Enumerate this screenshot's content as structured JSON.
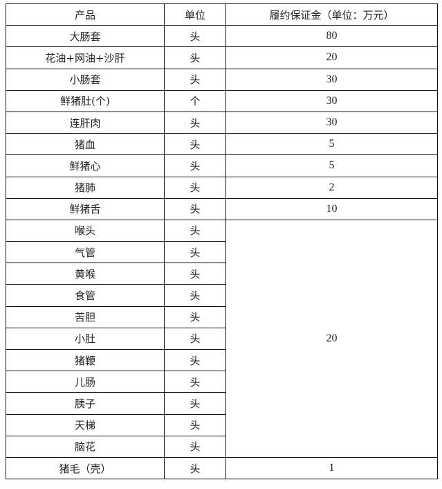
{
  "table": {
    "headers": [
      "产品",
      "单位",
      "履约保证金（单位：万元）"
    ],
    "rows": [
      {
        "product": "大肠套",
        "unit": "头",
        "deposit": "80"
      },
      {
        "product": "花油+网油+沙肝",
        "unit": "头",
        "deposit": "20"
      },
      {
        "product": "小肠套",
        "unit": "头",
        "deposit": "30"
      },
      {
        "product": "鲜猪肚(个)",
        "unit": "个",
        "deposit": "30"
      },
      {
        "product": "连肝肉",
        "unit": "头",
        "deposit": "30"
      },
      {
        "product": "猪血",
        "unit": "头",
        "deposit": "5"
      },
      {
        "product": "鲜猪心",
        "unit": "头",
        "deposit": "5"
      },
      {
        "product": "猪肺",
        "unit": "头",
        "deposit": "2"
      },
      {
        "product": "鲜猪舌",
        "unit": "头",
        "deposit": "10"
      },
      {
        "product": "喉头",
        "unit": "头",
        "deposit": "20",
        "rowspan": 11
      },
      {
        "product": "气管",
        "unit": "头"
      },
      {
        "product": "黄喉",
        "unit": "头"
      },
      {
        "product": "食管",
        "unit": "头"
      },
      {
        "product": "苦胆",
        "unit": "头"
      },
      {
        "product": "小肚",
        "unit": "头"
      },
      {
        "product": "猪鞭",
        "unit": "头"
      },
      {
        "product": "儿肠",
        "unit": "头"
      },
      {
        "product": "胰子",
        "unit": "头"
      },
      {
        "product": "天梯",
        "unit": "头"
      },
      {
        "product": "脑花",
        "unit": "头"
      },
      {
        "product": "猪毛（壳）",
        "unit": "头",
        "deposit": "1"
      }
    ]
  }
}
